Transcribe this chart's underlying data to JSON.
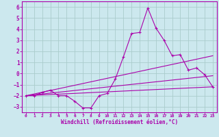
{
  "xlabel": "Windchill (Refroidissement éolien,°C)",
  "background_color": "#cce8ee",
  "grid_color": "#aacccc",
  "line_color": "#aa00aa",
  "xlim": [
    -0.5,
    23.5
  ],
  "ylim": [
    -3.5,
    6.5
  ],
  "xticks": [
    0,
    1,
    2,
    3,
    4,
    5,
    6,
    7,
    8,
    9,
    10,
    11,
    12,
    13,
    14,
    15,
    16,
    17,
    18,
    19,
    20,
    21,
    22,
    23
  ],
  "yticks": [
    -3,
    -2,
    -1,
    0,
    1,
    2,
    3,
    4,
    5,
    6
  ],
  "line1_x": [
    0,
    1,
    2,
    3,
    4,
    5,
    6,
    7,
    8,
    9,
    10,
    11,
    12,
    13,
    14,
    15,
    16,
    17,
    18,
    19,
    20,
    21,
    22,
    23
  ],
  "line1_y": [
    -2.0,
    -2.0,
    -1.7,
    -1.5,
    -2.0,
    -2.0,
    -2.5,
    -3.1,
    -3.1,
    -2.0,
    -1.8,
    -0.5,
    1.5,
    3.6,
    3.7,
    5.9,
    4.1,
    3.0,
    1.6,
    1.7,
    0.3,
    0.5,
    -0.1,
    -1.2
  ],
  "line2_x": [
    0,
    23
  ],
  "line2_y": [
    -2.0,
    -1.2
  ],
  "line3_x": [
    0,
    23
  ],
  "line3_y": [
    -2.0,
    -0.2
  ],
  "line4_x": [
    0,
    23
  ],
  "line4_y": [
    -2.0,
    1.6
  ]
}
